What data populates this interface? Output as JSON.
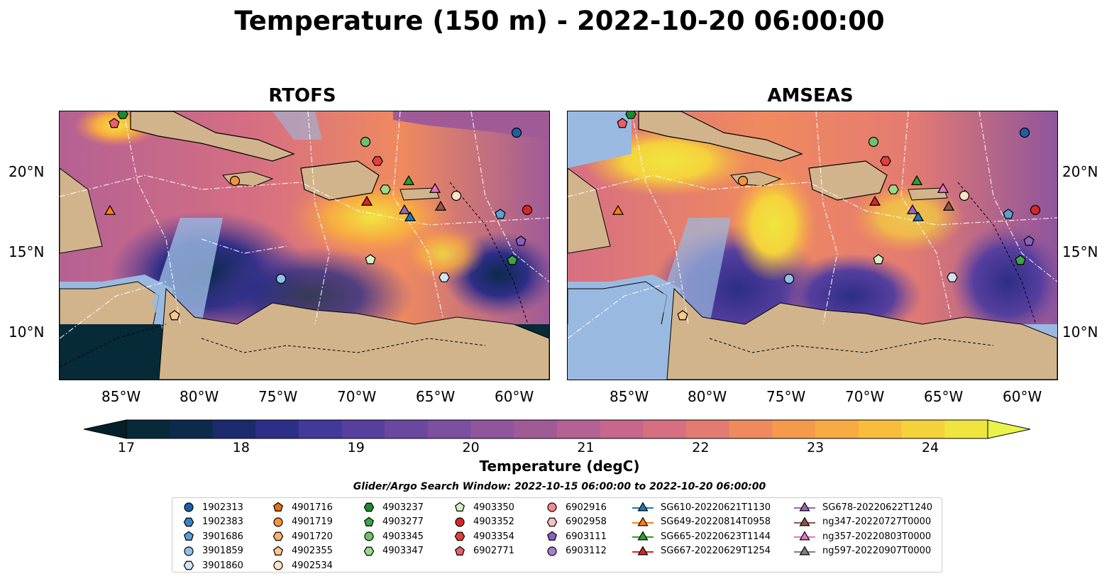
{
  "title": "Temperature (150 m) - 2022-10-20 06:00:00",
  "panels": [
    {
      "title": "RTOFS"
    },
    {
      "title": "AMSEAS"
    }
  ],
  "axes": {
    "lon_ticks": [
      "85°W",
      "80°W",
      "75°W",
      "70°W",
      "65°W",
      "60°W"
    ],
    "lat_ticks": [
      "20°N",
      "15°N",
      "10°N"
    ]
  },
  "colorbar": {
    "label": "Temperature (degC)",
    "ticks": [
      "17",
      "18",
      "19",
      "20",
      "21",
      "22",
      "23",
      "24"
    ],
    "min": 17,
    "max": 24.5,
    "colors": [
      "#062a38",
      "#0c2a4c",
      "#1b2a6c",
      "#2d2e86",
      "#423a98",
      "#573f9e",
      "#6b48a0",
      "#7d4f9f",
      "#8f559d",
      "#a05b97",
      "#b46193",
      "#c6678b",
      "#d66f82",
      "#e47b72",
      "#ef8a5f",
      "#f59a4c",
      "#f8ab42",
      "#f9bd3d",
      "#f5d23c",
      "#f0e53f"
    ],
    "extend_low": "#03202a",
    "extend_high": "#e8f44a"
  },
  "search_window": "Glider/Argo Search Window: 2022-10-15 06:00:00 to 2022-10-20 06:00:00",
  "legend": {
    "columns": [
      [
        {
          "label": "1902313",
          "marker": "circle",
          "color": "#1f5fa8"
        },
        {
          "label": "1902383",
          "marker": "hexagon",
          "color": "#3b82c4"
        },
        {
          "label": "3901686",
          "marker": "pentagon",
          "color": "#5c9fd8"
        },
        {
          "label": "3901859",
          "marker": "circle",
          "color": "#8ec1e6"
        },
        {
          "label": "3901860",
          "marker": "hexagon",
          "color": "#cfe5f5"
        }
      ],
      [
        {
          "label": "4901716",
          "marker": "pentagon",
          "color": "#e8720c"
        },
        {
          "label": "4901719",
          "marker": "circle",
          "color": "#f5943a"
        },
        {
          "label": "4901720",
          "marker": "hexagon",
          "color": "#f9b26b"
        },
        {
          "label": "4902355",
          "marker": "pentagon",
          "color": "#fcc890"
        },
        {
          "label": "4902534",
          "marker": "circle",
          "color": "#fde3c4"
        }
      ],
      [
        {
          "label": "4903237",
          "marker": "hexagon",
          "color": "#1e8a2e"
        },
        {
          "label": "4903277",
          "marker": "pentagon",
          "color": "#3aa646"
        },
        {
          "label": "4903345",
          "marker": "circle",
          "color": "#6cc26a"
        },
        {
          "label": "4903347",
          "marker": "hexagon",
          "color": "#9ad88e"
        }
      ],
      [
        {
          "label": "4903350",
          "marker": "pentagon",
          "color": "#d4f0c4"
        },
        {
          "label": "4903352",
          "marker": "circle",
          "color": "#d62728"
        },
        {
          "label": "4903354",
          "marker": "hexagon",
          "color": "#e2403c"
        },
        {
          "label": "6902771",
          "marker": "pentagon",
          "color": "#e8606a"
        }
      ],
      [
        {
          "label": "6902916",
          "marker": "circle",
          "color": "#f08a8a"
        },
        {
          "label": "6902958",
          "marker": "hexagon",
          "color": "#f8c0c0"
        },
        {
          "label": "6903111",
          "marker": "pentagon",
          "color": "#8b5fbf"
        },
        {
          "label": "6903112",
          "marker": "circle",
          "color": "#a480d0"
        }
      ],
      [
        {
          "label": "SG610-20220621T1130",
          "marker": "triangle",
          "color": "#1f77b4"
        },
        {
          "label": "SG649-20220814T0958",
          "marker": "triangle",
          "color": "#ff7f0e"
        },
        {
          "label": "SG665-20220623T1144",
          "marker": "triangle",
          "color": "#2ca02c"
        },
        {
          "label": "SG667-20220629T1254",
          "marker": "triangle",
          "color": "#d62728"
        }
      ],
      [
        {
          "label": "SG678-20220622T1240",
          "marker": "triangle",
          "color": "#9467bd"
        },
        {
          "label": "ng347-20220727T0000",
          "marker": "triangle",
          "color": "#8c564b"
        },
        {
          "label": "ng357-20220803T0000",
          "marker": "triangle",
          "color": "#e377c2"
        },
        {
          "label": "ng597-20220907T0000",
          "marker": "triangle",
          "color": "#7f7f7f"
        }
      ]
    ]
  },
  "map_colors": {
    "land": "#d2b48c",
    "shallow": "#9ab9e0"
  }
}
